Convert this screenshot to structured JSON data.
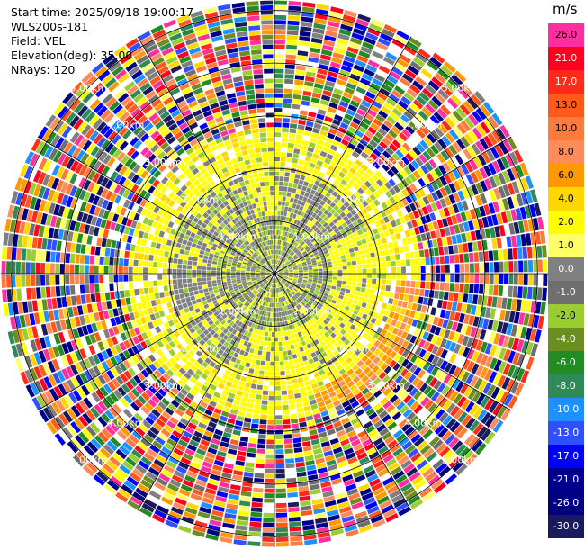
{
  "header": {
    "start_time": "Start time: 2025/09/18 19:00:17",
    "instrument": "WLS200s-181",
    "field": "Field: VEL",
    "elevation": "Elevation(deg): 35.00",
    "nrays": "NRays: 120"
  },
  "colorbar": {
    "unit": "m/s",
    "levels": [
      {
        "label": "26.0",
        "color": "#ff2fa0"
      },
      {
        "label": "21.0",
        "color": "#ff0020"
      },
      {
        "label": "17.0",
        "color": "#ff2a1a"
      },
      {
        "label": "13.0",
        "color": "#ff5a1a"
      },
      {
        "label": "10.0",
        "color": "#ff7a3c"
      },
      {
        "label": "8.0",
        "color": "#ff8c5a"
      },
      {
        "label": "6.0",
        "color": "#ff9900"
      },
      {
        "label": "4.0",
        "color": "#ffd700"
      },
      {
        "label": "2.0",
        "color": "#ffff00"
      },
      {
        "label": "1.0",
        "color": "#ffff66"
      },
      {
        "label": "0.0",
        "color": "#808080"
      },
      {
        "label": "-1.0",
        "color": "#6f6f6f"
      },
      {
        "label": "-2.0",
        "color": "#9acd32"
      },
      {
        "label": "-4.0",
        "color": "#6b8e23"
      },
      {
        "label": "-6.0",
        "color": "#228b22"
      },
      {
        "label": "-8.0",
        "color": "#2e8b57"
      },
      {
        "label": "-10.0",
        "color": "#1e90ff"
      },
      {
        "label": "-13.0",
        "color": "#3050ff"
      },
      {
        "label": "-17.0",
        "color": "#0000ff"
      },
      {
        "label": "-21.0",
        "color": "#00008b"
      },
      {
        "label": "-26.0",
        "color": "#000080"
      },
      {
        "label": "-30.0",
        "color": "#1a1a5e"
      }
    ]
  },
  "chart_data": {
    "type": "heatmap",
    "projection": "polar PPI",
    "field": "VEL",
    "units": "m/s",
    "elevation_deg": 35.0,
    "n_rays": 120,
    "max_range_km": 5.2,
    "range_ring_labels_km": [
      "1.00km",
      "2.00km",
      "3.00km",
      "4.00km",
      "5.00km"
    ],
    "rings": [
      1,
      2,
      3,
      4,
      5
    ],
    "spokes_deg": [
      0,
      30,
      60,
      90,
      120,
      150,
      180,
      210,
      240,
      270,
      300,
      330
    ]
  }
}
